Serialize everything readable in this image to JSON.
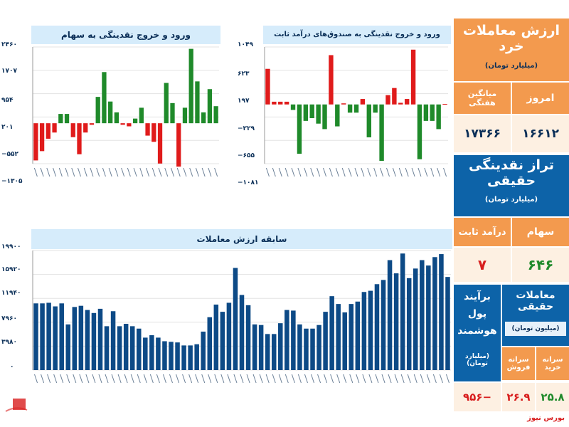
{
  "charts": {
    "stock_flow": {
      "title": "ورود و خروج نقدینگی به سهام",
      "yticks": [
        "۲۴۶۰",
        "۱۷۰۷",
        "۹۵۴",
        "۲۰۱",
        "−۵۵۲",
        "−۱۳۰۵"
      ]
    },
    "fixed_flow": {
      "title": "ورود و خروج نقدینگی به صندوق‌های درآمد ثابت",
      "yticks": [
        "۱۰۴۹",
        "۶۲۳",
        "۱۹۷",
        "−۲۲۹",
        "−۶۵۵",
        "−۱۰۸۱"
      ]
    },
    "value_history": {
      "title": "سابقه ارزش معاملات",
      "yticks": [
        "۱۹۹۰۰",
        "۱۵۹۲۰",
        "۱۱۹۴۰",
        "۷۹۶۰",
        "۳۹۸۰",
        "۰"
      ]
    }
  },
  "chart_data": [
    {
      "type": "bar",
      "title": "ورود و خروج نقدینگی به سهام",
      "ylim": [
        -1305,
        2460
      ],
      "values": [
        -1200,
        -900,
        -500,
        -300,
        300,
        300,
        -450,
        -1000,
        -300,
        -50,
        850,
        1650,
        700,
        350,
        -50,
        -100,
        150,
        500,
        -400,
        -600,
        -1300,
        1300,
        650,
        -1400,
        500,
        2400,
        1350,
        350,
        1100,
        550
      ],
      "colors": {
        "positive": "#1f8a2a",
        "negative": "#e01b1b"
      }
    },
    {
      "type": "bar",
      "title": "ورود و خروج نقدینگی به صندوق‌های درآمد ثابت",
      "ylim": [
        -1081,
        1049
      ],
      "values": [
        650,
        50,
        50,
        50,
        -100,
        -900,
        -300,
        -250,
        -350,
        -450,
        900,
        -400,
        20,
        -150,
        -150,
        100,
        -600,
        -150,
        -1030,
        170,
        300,
        30,
        100,
        1000,
        -1000,
        -300,
        -300,
        -450,
        10
      ],
      "colors": {
        "positive": "#e01b1b",
        "negative": "#1f8a2a"
      }
    },
    {
      "type": "bar",
      "title": "سابقه ارزش معاملات",
      "ylim": [
        0,
        19900
      ],
      "values": [
        11100,
        11100,
        11200,
        10600,
        11100,
        7600,
        10500,
        10700,
        10000,
        9500,
        10200,
        7300,
        9800,
        7300,
        7700,
        7300,
        6900,
        5400,
        5800,
        5400,
        4800,
        4700,
        4600,
        4100,
        4100,
        4300,
        6400,
        8800,
        10900,
        9700,
        11200,
        17000,
        12500,
        10800,
        7600,
        7500,
        6000,
        6000,
        7800,
        10000,
        9900,
        7600,
        6900,
        6900,
        7500,
        9700,
        12300,
        11000,
        9600,
        11000,
        11400,
        13000,
        13200,
        14300,
        15000,
        18300,
        16100,
        19400,
        15300,
        16900,
        18300,
        17400,
        18800,
        19300,
        15500
      ],
      "color": "#0d4a86"
    }
  ],
  "right": {
    "retail_title": "ارزش معاملات خرد",
    "retail_unit": "(میلیارد تومان)",
    "today_label": "امروز",
    "weekly_label": "میانگین هفتگی",
    "today_value": "۱۶۶۱۲",
    "weekly_value": "۱۷۳۶۶",
    "real_liq_title": "تراز نقدینگی حقیقی",
    "real_liq_unit": "(میلیارد تومان)",
    "stocks_label": "سهام",
    "fixed_label": "درآمد ثابت",
    "stocks_value": "۶۴۶",
    "fixed_value": "۷",
    "real_trades_title": "معاملات حقیقی",
    "real_trades_unit": "(میلیون تومان)",
    "buy_label": "سرانه خرید",
    "sell_label": "سرانه فروش",
    "smart_label_1": "برآیند",
    "smart_label_2": "پول",
    "smart_label_3": "هوشمند",
    "smart_unit": "(میلیارد تومان)",
    "buy_value": "۲۵.۸",
    "sell_value": "۲۶.۹",
    "smart_value": "−۹۵۶"
  },
  "footer": {
    "brand": "بورس نیوز"
  }
}
